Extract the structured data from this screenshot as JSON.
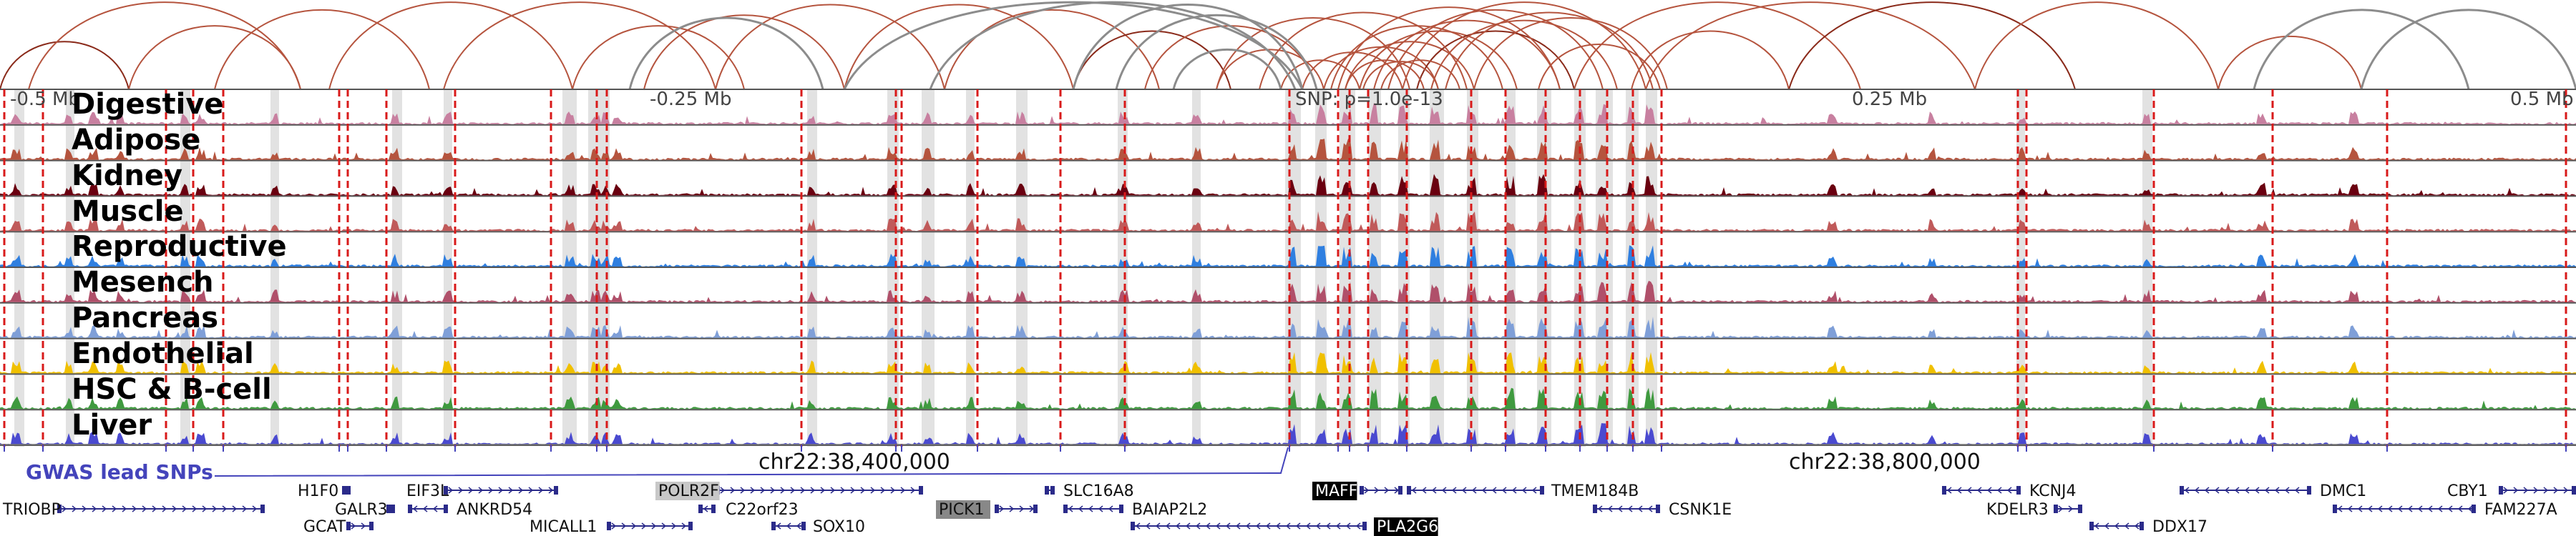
{
  "colors": {
    "loop": "#b5543e",
    "loop_strong": "#8a2a1a",
    "loop_gray": "#8c8c8c",
    "peak_highlight": "#e2e2e2",
    "dashed_line": "#d81a1a",
    "gene": "#2b2b8a",
    "gwas": "#4444bb"
  },
  "scale": {
    "labels": [
      "-0.5 Mb",
      "-0.25 Mb",
      "SNP: p=1.0e-13",
      "0.25 Mb",
      "0.5 Mb"
    ]
  },
  "tracks": [
    {
      "name": "Digestive",
      "color": "#c880a0"
    },
    {
      "name": "Adipose",
      "color": "#b5543e"
    },
    {
      "name": "Kidney",
      "color": "#6a0010"
    },
    {
      "name": "Muscle",
      "color": "#c05a5a"
    },
    {
      "name": "Reproductive",
      "color": "#2f7fe0"
    },
    {
      "name": "Mesench",
      "color": "#b0506a"
    },
    {
      "name": "Pancreas",
      "color": "#7f9fd8"
    },
    {
      "name": "Endothelial",
      "color": "#f0c000"
    },
    {
      "name": "HSC & B-cell",
      "color": "#3f9a3f"
    },
    {
      "name": "Liver",
      "color": "#4a4ad0"
    }
  ],
  "gwas_label": "GWAS lead SNPs",
  "coordinates": [
    "chr22:38,400,000",
    "chr22:38,800,000"
  ],
  "genes": [
    {
      "name": "TRIOBP"
    },
    {
      "name": "H1F0"
    },
    {
      "name": "GALR3"
    },
    {
      "name": "GCAT"
    },
    {
      "name": "EIF3L"
    },
    {
      "name": "ANKRD54"
    },
    {
      "name": "MICALL1"
    },
    {
      "name": "POLR2F"
    },
    {
      "name": "C22orf23"
    },
    {
      "name": "SOX10"
    },
    {
      "name": "PICK1"
    },
    {
      "name": "SLC16A8"
    },
    {
      "name": "BAIAP2L2"
    },
    {
      "name": "MAFF"
    },
    {
      "name": "PLA2G6"
    },
    {
      "name": "TMEM184B"
    },
    {
      "name": "CSNK1E"
    },
    {
      "name": "KCNJ4"
    },
    {
      "name": "KDELR3"
    },
    {
      "name": "DDX17"
    },
    {
      "name": "DMC1"
    },
    {
      "name": "CBY1"
    },
    {
      "name": "FAM227A"
    }
  ]
}
